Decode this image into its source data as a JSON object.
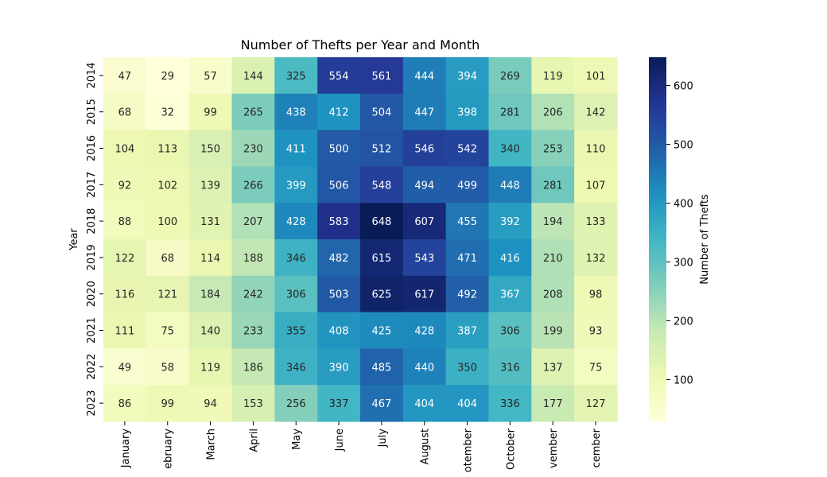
{
  "chart_data": {
    "type": "heatmap",
    "title": "Number of Thefts per Year and Month",
    "xlabel": "",
    "ylabel": "Year",
    "colorbar_label": "Number of Thefts",
    "colormap": "YlGnBu",
    "vmin": 29,
    "vmax": 648,
    "colorbar_ticks": [
      100,
      200,
      300,
      400,
      500,
      600
    ],
    "x_categories": [
      "January",
      "February",
      "March",
      "April",
      "May",
      "June",
      "July",
      "August",
      "September",
      "October",
      "November",
      "December"
    ],
    "x_tick_labels_visible": [
      "January",
      "ebruary",
      "March",
      "April",
      "May",
      "June",
      "July",
      "August",
      "otember",
      "October",
      "vember",
      "cember"
    ],
    "y_categories": [
      "2014",
      "2015",
      "2016",
      "2017",
      "2018",
      "2019",
      "2020",
      "2021",
      "2022",
      "2023"
    ],
    "values": [
      [
        47,
        29,
        57,
        144,
        325,
        554,
        561,
        444,
        394,
        269,
        119,
        101
      ],
      [
        68,
        32,
        99,
        265,
        438,
        412,
        504,
        447,
        398,
        281,
        206,
        142
      ],
      [
        104,
        113,
        150,
        230,
        411,
        500,
        512,
        546,
        542,
        340,
        253,
        110
      ],
      [
        92,
        102,
        139,
        266,
        399,
        506,
        548,
        494,
        499,
        448,
        281,
        107
      ],
      [
        88,
        100,
        131,
        207,
        428,
        583,
        648,
        607,
        455,
        392,
        194,
        133
      ],
      [
        122,
        68,
        114,
        188,
        346,
        482,
        615,
        543,
        471,
        416,
        210,
        132
      ],
      [
        116,
        121,
        184,
        242,
        306,
        503,
        625,
        617,
        492,
        367,
        208,
        98
      ],
      [
        111,
        75,
        140,
        233,
        355,
        408,
        425,
        428,
        387,
        306,
        199,
        93
      ],
      [
        49,
        58,
        119,
        186,
        346,
        390,
        485,
        440,
        350,
        316,
        137,
        75
      ],
      [
        86,
        99,
        94,
        153,
        256,
        337,
        467,
        404,
        404,
        336,
        177,
        127
      ]
    ]
  }
}
